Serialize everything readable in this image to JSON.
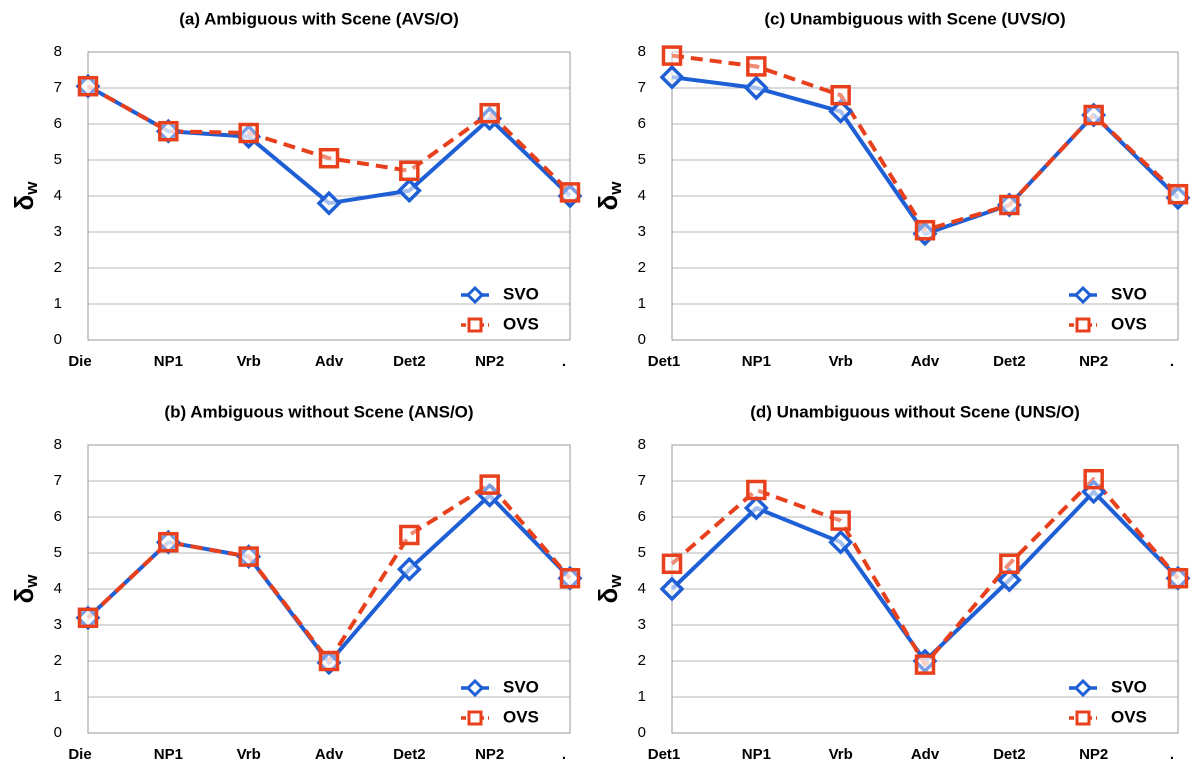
{
  "chart_data": [
    {
      "type": "line",
      "title": "(a)  Ambiguous with Scene (AVS/O)",
      "ylabel": "δ",
      "ylabel_subscript": "w",
      "categories": [
        "Die",
        "NP1",
        "Vrb",
        "Adv",
        "Det2",
        "NP2",
        "."
      ],
      "series": [
        {
          "name": "SVO",
          "color": "#1f5fd6",
          "marker": "diamond",
          "dashed": false,
          "values": [
            7.05,
            5.8,
            5.65,
            3.8,
            4.15,
            6.15,
            4.0
          ]
        },
        {
          "name": "OVS",
          "color": "#e8401c",
          "marker": "square",
          "dashed": true,
          "values": [
            7.05,
            5.8,
            5.75,
            5.05,
            4.7,
            6.3,
            4.1
          ]
        }
      ],
      "ylim": [
        0,
        8
      ],
      "yticks": [
        0,
        1,
        2,
        3,
        4,
        5,
        6,
        7,
        8
      ],
      "grid": true,
      "legend": "lower right"
    },
    {
      "type": "line",
      "title": "(c)  Unambiguous with Scene (UVS/O)",
      "ylabel": "δ",
      "ylabel_subscript": "w",
      "categories": [
        "Det1",
        "NP1",
        "Vrb",
        "Adv",
        "Det2",
        "NP2",
        "."
      ],
      "series": [
        {
          "name": "SVO",
          "color": "#1f5fd6",
          "marker": "diamond",
          "dashed": false,
          "values": [
            7.3,
            7.0,
            6.35,
            2.95,
            3.75,
            6.25,
            3.95
          ]
        },
        {
          "name": "OVS",
          "color": "#e8401c",
          "marker": "square",
          "dashed": true,
          "values": [
            7.9,
            7.6,
            6.8,
            3.05,
            3.75,
            6.25,
            4.05
          ]
        }
      ],
      "ylim": [
        0,
        8
      ],
      "yticks": [
        0,
        1,
        2,
        3,
        4,
        5,
        6,
        7,
        8
      ],
      "grid": true,
      "legend": "lower right"
    },
    {
      "type": "line",
      "title": "(b)  Ambiguous without Scene (ANS/O)",
      "ylabel": "δ",
      "ylabel_subscript": "w",
      "categories": [
        "Die",
        "NP1",
        "Vrb",
        "Adv",
        "Det2",
        "NP2",
        "."
      ],
      "series": [
        {
          "name": "SVO",
          "color": "#1f5fd6",
          "marker": "diamond",
          "dashed": false,
          "values": [
            3.2,
            5.3,
            4.9,
            1.95,
            4.55,
            6.6,
            4.3
          ]
        },
        {
          "name": "OVS",
          "color": "#e8401c",
          "marker": "square",
          "dashed": true,
          "values": [
            3.2,
            5.3,
            4.9,
            2.0,
            5.5,
            6.9,
            4.3
          ]
        }
      ],
      "ylim": [
        0,
        8
      ],
      "yticks": [
        0,
        1,
        2,
        3,
        4,
        5,
        6,
        7,
        8
      ],
      "grid": true,
      "legend": "lower right"
    },
    {
      "type": "line",
      "title": "(d)  Unambiguous without Scene (UNS/O)",
      "ylabel": "δ",
      "ylabel_subscript": "w",
      "categories": [
        "Det1",
        "NP1",
        "Vrb",
        "Adv",
        "Det2",
        "NP2",
        "."
      ],
      "series": [
        {
          "name": "SVO",
          "color": "#1f5fd6",
          "marker": "diamond",
          "dashed": false,
          "values": [
            4.0,
            6.25,
            5.3,
            2.0,
            4.25,
            6.7,
            4.3
          ]
        },
        {
          "name": "OVS",
          "color": "#e8401c",
          "marker": "square",
          "dashed": true,
          "values": [
            4.7,
            6.75,
            5.9,
            1.9,
            4.7,
            7.05,
            4.3
          ]
        }
      ],
      "ylim": [
        0,
        8
      ],
      "yticks": [
        0,
        1,
        2,
        3,
        4,
        5,
        6,
        7,
        8
      ],
      "grid": true,
      "legend": "lower right"
    }
  ]
}
